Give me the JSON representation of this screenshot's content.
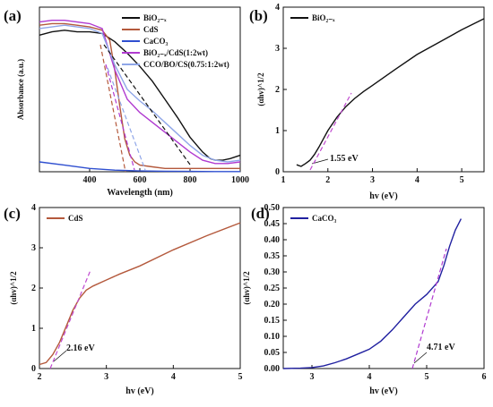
{
  "chart_data": [
    {
      "panel": "(a)",
      "type": "line",
      "xlabel": "Wavelength (nm)",
      "ylabel": "Absorbance (a.u.)",
      "xlim": [
        200,
        1000
      ],
      "ylim": [
        0,
        1.0
      ],
      "xticks": [
        "400",
        "600",
        "800",
        "1000"
      ],
      "series": [
        {
          "name": "BiO₂₋ₓ",
          "color": "#111111",
          "x": [
            200,
            250,
            300,
            350,
            400,
            450,
            500,
            550,
            600,
            650,
            700,
            750,
            800,
            850,
            880,
            900,
            930,
            960,
            1000
          ],
          "y": [
            0.83,
            0.85,
            0.86,
            0.85,
            0.85,
            0.84,
            0.79,
            0.72,
            0.64,
            0.55,
            0.44,
            0.33,
            0.21,
            0.12,
            0.08,
            0.07,
            0.07,
            0.08,
            0.1
          ]
        },
        {
          "name": "CdS",
          "color": "#b4593c",
          "x": [
            200,
            250,
            300,
            350,
            400,
            450,
            480,
            500,
            520,
            540,
            560,
            580,
            600,
            650,
            700,
            750,
            800,
            850,
            900,
            950,
            1000
          ],
          "y": [
            0.89,
            0.9,
            0.9,
            0.89,
            0.88,
            0.86,
            0.8,
            0.62,
            0.4,
            0.2,
            0.1,
            0.06,
            0.04,
            0.03,
            0.02,
            0.02,
            0.02,
            0.02,
            0.02,
            0.02,
            0.02
          ]
        },
        {
          "name": "CaCO₃",
          "color": "#2f4fd0",
          "x": [
            200,
            300,
            400,
            500,
            600,
            700,
            800,
            900,
            1000
          ],
          "y": [
            0.06,
            0.04,
            0.02,
            0.01,
            0.005,
            0.003,
            0.002,
            0.001,
            0.001
          ]
        },
        {
          "name": "BiO₂₋ₓ/CdS(1:2wt)",
          "color": "#b03ad0",
          "x": [
            200,
            250,
            300,
            350,
            400,
            450,
            500,
            550,
            600,
            650,
            700,
            750,
            800,
            850,
            900,
            950,
            1000
          ],
          "y": [
            0.91,
            0.92,
            0.92,
            0.91,
            0.9,
            0.87,
            0.62,
            0.44,
            0.36,
            0.3,
            0.24,
            0.18,
            0.12,
            0.07,
            0.05,
            0.05,
            0.06
          ]
        },
        {
          "name": "CCO/BO/CS(0.75:1:2wt)",
          "color": "#8fa6e8",
          "x": [
            200,
            250,
            300,
            350,
            400,
            450,
            500,
            550,
            600,
            650,
            700,
            750,
            800,
            850,
            900,
            950,
            1000
          ],
          "y": [
            0.87,
            0.88,
            0.89,
            0.88,
            0.87,
            0.84,
            0.65,
            0.5,
            0.43,
            0.37,
            0.3,
            0.23,
            0.16,
            0.1,
            0.07,
            0.06,
            0.07
          ]
        }
      ]
    },
    {
      "panel": "(b)",
      "type": "line",
      "xlabel": "hv (eV)",
      "ylabel": "(αhv)^1/2",
      "xlim": [
        1,
        5.5
      ],
      "ylim": [
        0,
        4
      ],
      "xticks": [
        "1",
        "2",
        "3",
        "4",
        "5"
      ],
      "yticks": [
        "0",
        "1",
        "2",
        "3",
        "4"
      ],
      "series": [
        {
          "name": "BiO₂₋ₓ",
          "color": "#111111",
          "x": [
            1.3,
            1.4,
            1.5,
            1.6,
            1.7,
            1.8,
            1.9,
            2.0,
            2.2,
            2.4,
            2.6,
            2.8,
            3.0,
            3.5,
            4.0,
            4.5,
            5.0,
            5.5
          ],
          "y": [
            0.17,
            0.13,
            0.2,
            0.28,
            0.42,
            0.6,
            0.8,
            1.0,
            1.32,
            1.58,
            1.78,
            1.95,
            2.1,
            2.48,
            2.85,
            3.15,
            3.45,
            3.72
          ]
        }
      ],
      "annotation": "1.55 eV"
    },
    {
      "panel": "(c)",
      "type": "line",
      "xlabel": "hv (eV)",
      "ylabel": "(αhv)^1/2",
      "xlim": [
        2,
        5
      ],
      "ylim": [
        0,
        4
      ],
      "xticks": [
        "2",
        "3",
        "4",
        "5"
      ],
      "yticks": [
        "0",
        "1",
        "2",
        "3",
        "4"
      ],
      "series": [
        {
          "name": "CdS",
          "color": "#b4593c",
          "x": [
            2.0,
            2.1,
            2.2,
            2.3,
            2.4,
            2.5,
            2.6,
            2.7,
            2.8,
            3.0,
            3.2,
            3.5,
            4.0,
            4.5,
            5.0
          ],
          "y": [
            0.1,
            0.15,
            0.35,
            0.65,
            1.05,
            1.45,
            1.75,
            1.95,
            2.05,
            2.2,
            2.35,
            2.55,
            2.95,
            3.3,
            3.62
          ]
        }
      ],
      "annotation": "2.16 eV"
    },
    {
      "panel": "(d)",
      "type": "line",
      "xlabel": "hv (eV)",
      "ylabel": "(αhv)^1/2",
      "xlim": [
        2.5,
        6
      ],
      "ylim": [
        0,
        0.5
      ],
      "xticks": [
        "3",
        "4",
        "5",
        "6"
      ],
      "yticks": [
        "0.00",
        "0.05",
        "0.10",
        "0.15",
        "0.20",
        "0.25",
        "0.30",
        "0.35",
        "0.40",
        "0.45",
        "0.50"
      ],
      "series": [
        {
          "name": "CaCO₃",
          "color": "#2020a0",
          "x": [
            2.5,
            2.8,
            3.0,
            3.2,
            3.4,
            3.6,
            3.8,
            4.0,
            4.2,
            4.4,
            4.6,
            4.8,
            5.0,
            5.2,
            5.3,
            5.4,
            5.5,
            5.6
          ],
          "y": [
            0.0,
            0.001,
            0.003,
            0.008,
            0.018,
            0.03,
            0.045,
            0.06,
            0.085,
            0.12,
            0.16,
            0.2,
            0.23,
            0.27,
            0.32,
            0.38,
            0.43,
            0.465
          ]
        }
      ],
      "annotation": "4.71 eV"
    }
  ]
}
